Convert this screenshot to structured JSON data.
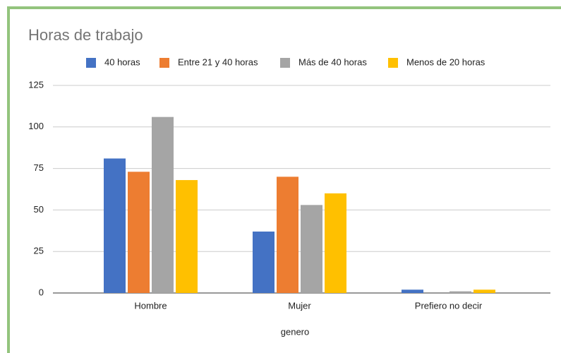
{
  "chart_data": {
    "type": "bar",
    "title": "Horas de trabajo",
    "x_label": "genero",
    "categories": [
      "Hombre",
      "Mujer",
      "Prefiero no decir"
    ],
    "series": [
      {
        "name": "40 horas",
        "color": "#4472c4",
        "values": [
          81,
          37,
          2
        ]
      },
      {
        "name": "Entre 21 y 40 horas",
        "color": "#ed7d31",
        "values": [
          73,
          70,
          0
        ]
      },
      {
        "name": "Más de 40 horas",
        "color": "#a5a5a5",
        "values": [
          106,
          53,
          1
        ]
      },
      {
        "name": "Menos de 20 horas",
        "color": "#ffc000",
        "values": [
          68,
          60,
          2
        ]
      }
    ],
    "ylim": [
      0,
      125
    ],
    "yticks": [
      0,
      25,
      50,
      75,
      100,
      125
    ],
    "grid": true,
    "legend": "top"
  }
}
